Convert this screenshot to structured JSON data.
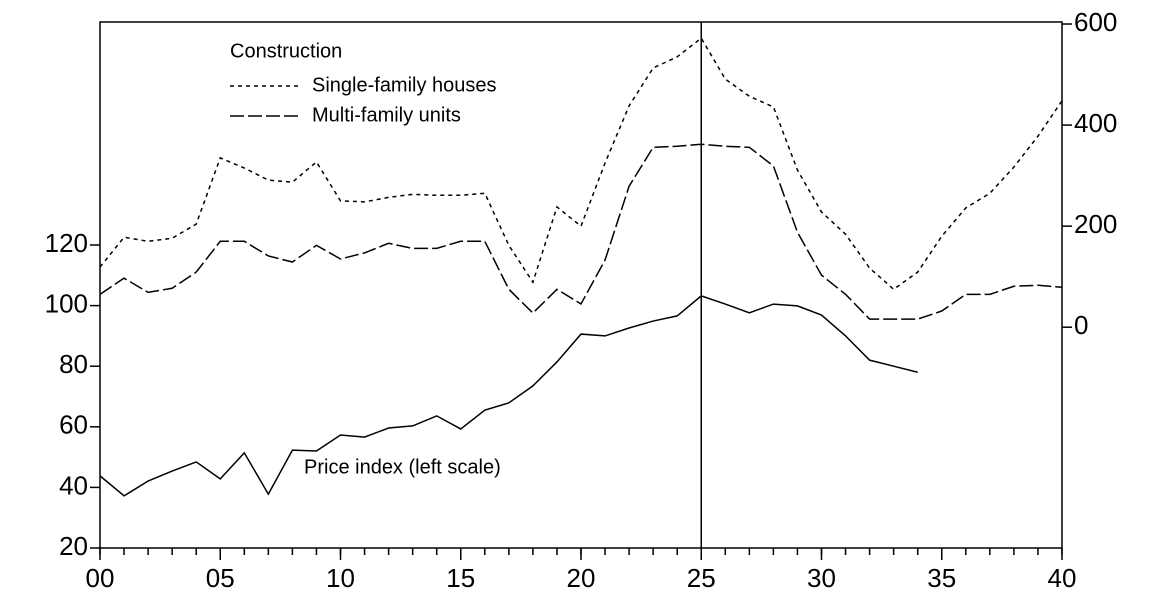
{
  "chart_data": {
    "type": "line",
    "x": [
      0,
      1,
      2,
      3,
      4,
      5,
      6,
      7,
      8,
      9,
      10,
      11,
      12,
      13,
      14,
      15,
      16,
      17,
      18,
      19,
      20,
      21,
      22,
      23,
      24,
      25,
      26,
      27,
      28,
      29,
      30,
      31,
      32,
      33,
      34,
      35,
      36,
      37,
      38,
      39,
      40
    ],
    "legend_title": "Construction",
    "series": [
      {
        "name": "Single-family houses",
        "color": "#000000",
        "dash": "4,4",
        "axis": "y2",
        "values": [
          119,
          178,
          170,
          176,
          204,
          335,
          315,
          291,
          287,
          327,
          250,
          248,
          257,
          263,
          261,
          261,
          265,
          162,
          89,
          238,
          200,
          325,
          438,
          513,
          535,
          572,
          491,
          457,
          436,
          311,
          228,
          184,
          117,
          75,
          109,
          180,
          236,
          265,
          317,
          378,
          448
        ]
      },
      {
        "name": "Multi-family units",
        "color": "#000000",
        "dash": "14,4",
        "axis": "y2",
        "values": [
          65,
          97,
          69,
          77,
          109,
          170,
          170,
          141,
          129,
          162,
          135,
          147,
          166,
          156,
          156,
          170,
          170,
          75,
          28,
          75,
          46,
          133,
          279,
          356,
          358,
          362,
          358,
          356,
          319,
          188,
          103,
          65,
          16,
          16,
          16,
          32,
          65,
          65,
          81,
          83,
          79
        ]
      },
      {
        "name": "Price index (left scale)",
        "color": "#000000",
        "axis": "y",
        "values": [
          43.8,
          37.2,
          42.1,
          45.4,
          48.4,
          42.8,
          51.4,
          37.8,
          52.3,
          52,
          57.3,
          56.6,
          59.6,
          60.3,
          63.6,
          59.3,
          65.5,
          67.9,
          73.5,
          81.4,
          90.6,
          90,
          92.6,
          94.9,
          96.6,
          103.2,
          100.5,
          97.6,
          100.5,
          99.9,
          96.9,
          90,
          82,
          80,
          78,
          null,
          null,
          null,
          null,
          null,
          null
        ]
      }
    ],
    "xlim": [
      0,
      40
    ],
    "xticks": [
      {
        "value": 0,
        "label": "00"
      },
      {
        "value": 5,
        "label": "05"
      },
      10,
      15,
      20,
      25,
      30,
      35,
      40
    ],
    "ylim": [
      20,
      193.6
    ],
    "yticks": [
      20,
      40,
      60,
      80,
      100,
      120
    ],
    "y2lim": [
      -437,
      604
    ],
    "y2ticks": [
      0,
      200,
      400,
      600
    ],
    "vline": 25
  }
}
